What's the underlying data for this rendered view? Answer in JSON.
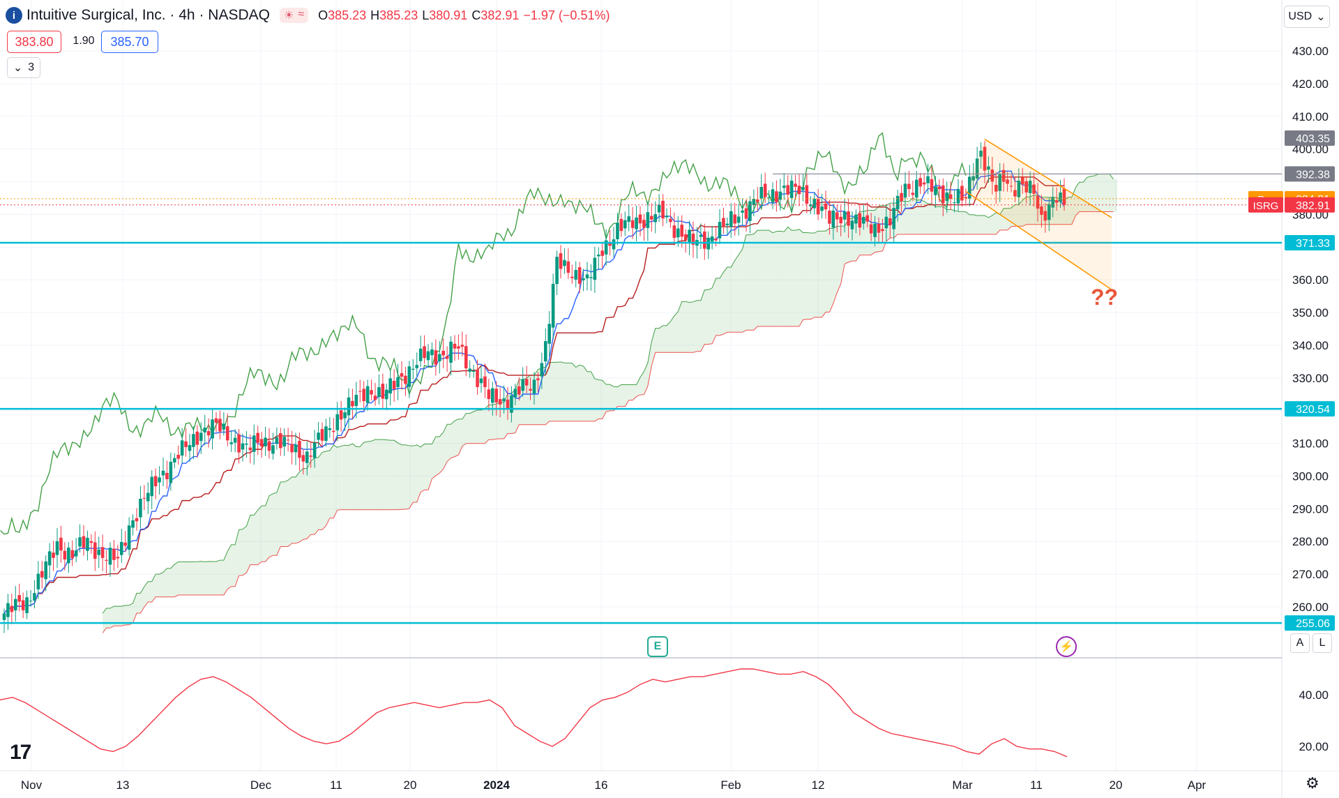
{
  "header": {
    "logo_glyph": "i",
    "symbol_line": "Intuitive Surgical, Inc. · 4h · NASDAQ",
    "market_icons": [
      "☀",
      "≈"
    ],
    "ohlc": [
      {
        "k": "O",
        "v": "385.23"
      },
      {
        "k": "H",
        "v": "385.23"
      },
      {
        "k": "L",
        "v": "380.91"
      },
      {
        "k": "C",
        "v": "382.91"
      }
    ],
    "change": "−1.97 (−0.51%)",
    "bid": "383.80",
    "spread": "1.90",
    "ask": "385.70",
    "collapse_count": "3",
    "currency": "USD",
    "scale_buttons": [
      "A",
      "L"
    ],
    "brand_logo": "17",
    "earnings_icon": "E",
    "annotation": "??"
  },
  "colors": {
    "bull": "#089981",
    "bear": "#f23645",
    "tenkan": "#2962ff",
    "kijun": "#b71c1c",
    "lead_a": "#43a047",
    "lead_b": "#ef5350",
    "chikou": "#43a047",
    "hline": "#00bcd4",
    "channel": "#ff9800",
    "rsi": "#f23645"
  },
  "chart_data": {
    "type": "candlestick",
    "title": "Intuitive Surgical, Inc. · 4h · NASDAQ",
    "price_axis": {
      "ticks": [
        "430.00",
        "420.00",
        "410.00",
        "400.00",
        "380.00",
        "360.00",
        "350.00",
        "340.00",
        "330.00",
        "310.00",
        "300.00",
        "290.00",
        "280.00",
        "270.00",
        "260.00"
      ],
      "range": [
        250,
        438
      ]
    },
    "x_axis": {
      "ticks": [
        "Nov",
        "13",
        "Dec",
        "11",
        "20",
        "2024",
        "16",
        "Feb",
        "12",
        "Mar",
        "11",
        "20",
        "Apr"
      ]
    },
    "price_labels": [
      {
        "text": "403.35",
        "value": 403.35,
        "style": "gray"
      },
      {
        "text": "392.38",
        "value": 392.38,
        "style": "gray"
      },
      {
        "text": "384.81",
        "tag": "Pre",
        "value": 384.81,
        "style": "orange"
      },
      {
        "text": "382.91",
        "tag": "ISRG",
        "value": 382.91,
        "style": "red"
      },
      {
        "text": "371.33",
        "value": 371.33,
        "style": "cyan"
      },
      {
        "text": "320.54",
        "value": 320.54,
        "style": "cyan"
      },
      {
        "text": "255.06",
        "value": 255.06,
        "style": "cyan"
      }
    ],
    "horizontal_levels": [
      371.33,
      320.54,
      255.06
    ],
    "gray_level": 392.38,
    "pre_market": 384.81,
    "last_close": 382.91,
    "channel": {
      "upper": [
        [
          "Mar 4",
          403
        ],
        [
          "Mar 19",
          379
        ]
      ],
      "lower": [
        [
          "Mar 1",
          387
        ],
        [
          "Mar 19",
          357
        ]
      ]
    },
    "candles_anchor_closes": [
      [
        0,
        258
      ],
      [
        6,
        262
      ],
      [
        10,
        270
      ],
      [
        14,
        279
      ],
      [
        18,
        276
      ],
      [
        22,
        280
      ],
      [
        26,
        276
      ],
      [
        30,
        274
      ],
      [
        33,
        285
      ],
      [
        37,
        293
      ],
      [
        41,
        300
      ],
      [
        45,
        305
      ],
      [
        49,
        310
      ],
      [
        52,
        314
      ],
      [
        56,
        315
      ],
      [
        60,
        312
      ],
      [
        64,
        308
      ],
      [
        68,
        311
      ],
      [
        72,
        310
      ],
      [
        76,
        309
      ],
      [
        80,
        306
      ],
      [
        84,
        312
      ],
      [
        88,
        318
      ],
      [
        92,
        322
      ],
      [
        96,
        327
      ],
      [
        100,
        324
      ],
      [
        104,
        330
      ],
      [
        108,
        333
      ],
      [
        112,
        338
      ],
      [
        116,
        337
      ],
      [
        120,
        339
      ],
      [
        124,
        332
      ],
      [
        128,
        324
      ],
      [
        132,
        323
      ],
      [
        136,
        326
      ],
      [
        140,
        328
      ],
      [
        143,
        340
      ],
      [
        146,
        365
      ],
      [
        150,
        363
      ],
      [
        154,
        359
      ],
      [
        158,
        370
      ],
      [
        162,
        375
      ],
      [
        166,
        378
      ],
      [
        170,
        379
      ],
      [
        174,
        380
      ],
      [
        178,
        375
      ],
      [
        182,
        371
      ],
      [
        186,
        373
      ],
      [
        190,
        376
      ],
      [
        194,
        380
      ],
      [
        198,
        384
      ],
      [
        202,
        386
      ],
      [
        206,
        388
      ],
      [
        210,
        387
      ],
      [
        214,
        384
      ],
      [
        218,
        378
      ],
      [
        222,
        380
      ],
      [
        226,
        377
      ],
      [
        230,
        376
      ],
      [
        234,
        378
      ],
      [
        238,
        388
      ],
      [
        242,
        390
      ],
      [
        246,
        387
      ],
      [
        250,
        386
      ],
      [
        254,
        384
      ],
      [
        256,
        394
      ],
      [
        258,
        400
      ],
      [
        260,
        393
      ],
      [
        262,
        387
      ],
      [
        264,
        391
      ],
      [
        266,
        388
      ],
      [
        268,
        390
      ],
      [
        270,
        388
      ],
      [
        272,
        386
      ],
      [
        274,
        378
      ],
      [
        276,
        384
      ],
      [
        278,
        386
      ],
      [
        280,
        382.91
      ]
    ],
    "ichimoku": {
      "tenkan_color": "blue",
      "kijun_color": "dark red",
      "senkou_a_color": "green",
      "senkou_b_color": "red",
      "chikou_color": "green"
    },
    "indicator": {
      "type": "line",
      "ticks": [
        "40.00",
        "20.00"
      ],
      "range": [
        14,
        50
      ],
      "values": [
        38,
        39,
        37,
        34,
        31,
        28,
        25,
        22,
        19,
        18,
        20,
        24,
        29,
        34,
        39,
        43,
        46,
        47,
        45,
        42,
        39,
        35,
        31,
        27,
        24,
        22,
        21,
        22,
        25,
        29,
        33,
        35,
        36,
        37,
        36,
        35,
        36,
        37,
        37,
        38,
        35,
        28,
        25,
        22,
        20,
        23,
        29,
        35,
        38,
        39,
        41,
        44,
        46,
        45,
        46,
        47,
        47,
        48,
        49,
        50,
        50,
        49,
        48,
        48,
        49,
        47,
        44,
        39,
        33,
        30,
        27,
        25,
        24,
        23,
        22,
        21,
        20,
        18,
        17,
        21,
        23,
        20,
        19,
        19,
        18,
        16
      ]
    }
  }
}
